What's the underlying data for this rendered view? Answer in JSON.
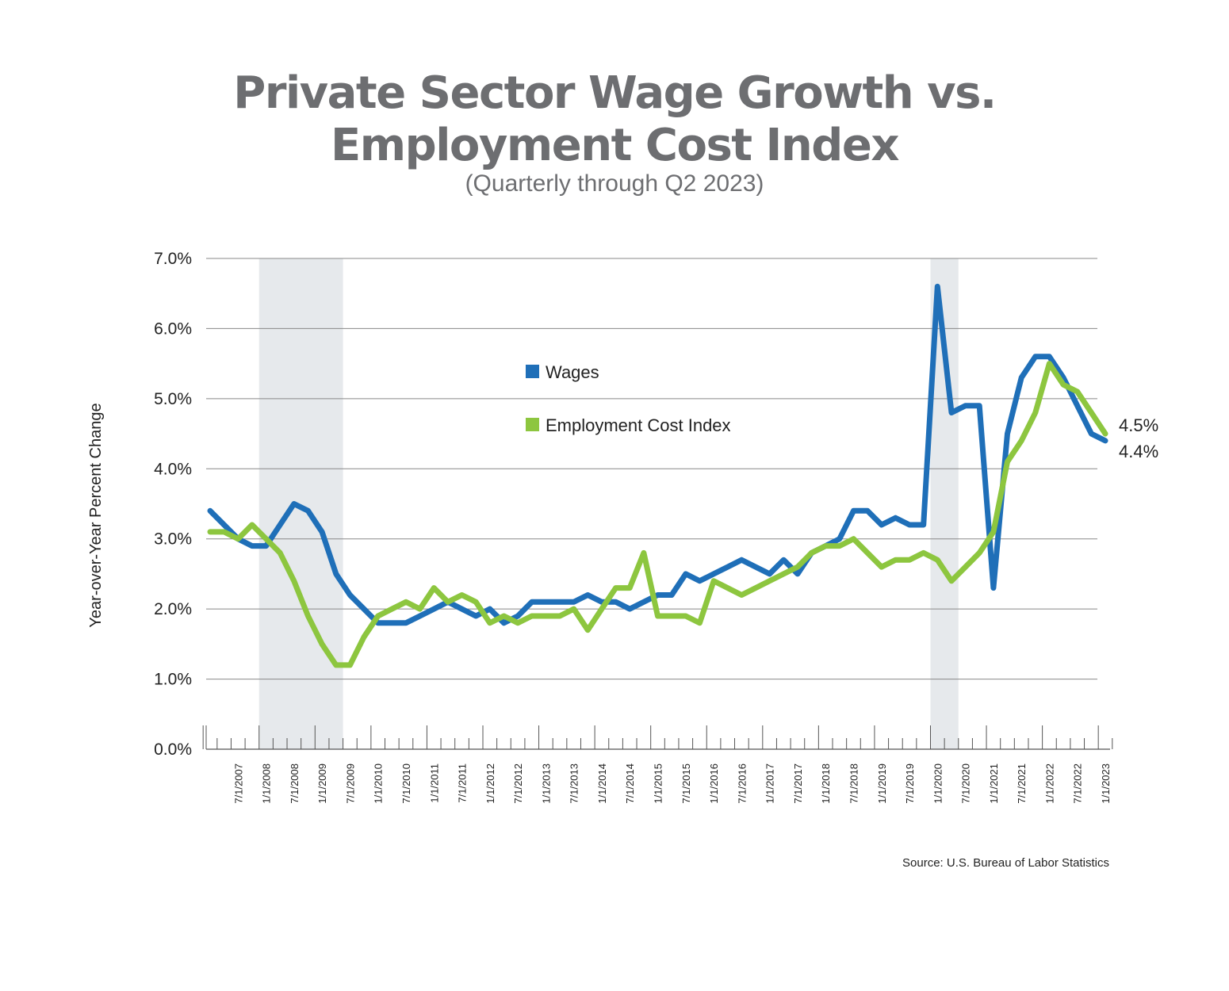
{
  "title_line1": "Private Sector Wage Growth vs.",
  "title_line2": "Employment Cost Index",
  "subtitle": "(Quarterly through Q2 2023)",
  "source": "Source: U.S. Bureau of Labor Statistics",
  "colors": {
    "wages": "#1f6fb8",
    "eci": "#8dc63f",
    "recession": "#e6e9ec",
    "grid": "#888888"
  },
  "chart_data": {
    "type": "line",
    "ylabel": "Year-over-Year Percent Change",
    "xlabel": "",
    "ylim": [
      0,
      7
    ],
    "yticks": [
      "0.0%",
      "1.0%",
      "2.0%",
      "3.0%",
      "4.0%",
      "5.0%",
      "6.0%",
      "7.0%"
    ],
    "x_tick_labels": [
      "7/1/2007",
      "1/1/2008",
      "7/1/2008",
      "1/1/2009",
      "7/1/2009",
      "1/1/2010",
      "7/1/2010",
      "1/1/2011",
      "7/1/2011",
      "1/1/2012",
      "7/1/2012",
      "1/1/2013",
      "7/1/2013",
      "1/1/2014",
      "7/1/2014",
      "1/1/2015",
      "7/1/2015",
      "1/1/2016",
      "7/1/2016",
      "1/1/2017",
      "7/1/2017",
      "1/1/2018",
      "7/1/2018",
      "1/1/2019",
      "7/1/2019",
      "1/1/2020",
      "7/1/2020",
      "1/1/2021",
      "7/1/2021",
      "1/1/2022",
      "7/1/2022",
      "1/1/2023"
    ],
    "x_first": "1/1/2007",
    "x_last": "4/1/2023",
    "recessions": [
      [
        "1/1/2008",
        "4/1/2009"
      ],
      [
        "1/1/2020",
        "4/1/2020"
      ]
    ],
    "legend_position": "center",
    "grid": true,
    "series": [
      {
        "name": "Wages",
        "values": [
          3.4,
          3.2,
          3.0,
          2.9,
          2.9,
          3.2,
          3.5,
          3.4,
          3.1,
          2.5,
          2.2,
          2.0,
          1.8,
          1.8,
          1.8,
          1.9,
          2.0,
          2.1,
          2.0,
          1.9,
          2.0,
          1.8,
          1.9,
          2.1,
          2.1,
          2.1,
          2.1,
          2.2,
          2.1,
          2.1,
          2.0,
          2.1,
          2.2,
          2.2,
          2.5,
          2.4,
          2.5,
          2.6,
          2.7,
          2.6,
          2.5,
          2.7,
          2.5,
          2.8,
          2.9,
          3.0,
          3.4,
          3.4,
          3.2,
          3.3,
          3.2,
          3.2,
          6.6,
          4.8,
          4.9,
          4.9,
          2.3,
          4.5,
          5.3,
          5.6,
          5.6,
          5.3,
          4.9,
          4.5,
          4.4
        ],
        "end_label": "4.4%"
      },
      {
        "name": "Employment Cost Index",
        "values": [
          3.1,
          3.1,
          3.0,
          3.2,
          3.0,
          2.8,
          2.4,
          1.9,
          1.5,
          1.2,
          1.2,
          1.6,
          1.9,
          2.0,
          2.1,
          2.0,
          2.3,
          2.1,
          2.2,
          2.1,
          1.8,
          1.9,
          1.8,
          1.9,
          1.9,
          1.9,
          2.0,
          1.7,
          2.0,
          2.3,
          2.3,
          2.8,
          1.9,
          1.9,
          1.9,
          1.8,
          2.4,
          2.3,
          2.2,
          2.3,
          2.4,
          2.5,
          2.6,
          2.8,
          2.9,
          2.9,
          3.0,
          2.8,
          2.6,
          2.7,
          2.7,
          2.8,
          2.7,
          2.4,
          2.6,
          2.8,
          3.1,
          4.1,
          4.4,
          4.8,
          5.5,
          5.2,
          5.1,
          4.8,
          4.5
        ],
        "end_label": "4.5%"
      }
    ]
  }
}
